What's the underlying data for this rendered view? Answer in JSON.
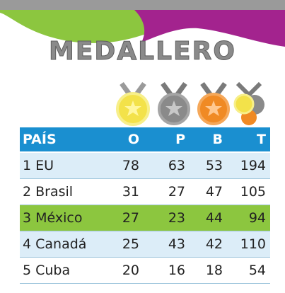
{
  "title": "MEDALLERO",
  "table": {
    "header": [
      "PAÍS",
      "O",
      "P",
      "B",
      "T"
    ],
    "rows": [
      [
        "1 EU",
        "78",
        "63",
        "53",
        "194"
      ],
      [
        "2 Brasil",
        "31",
        "27",
        "47",
        "105"
      ],
      [
        "3 México",
        "27",
        "23",
        "44",
        "94"
      ],
      [
        "4 Canadá",
        "25",
        "43",
        "42",
        "110"
      ],
      [
        "5 Cuba",
        "20",
        "16",
        "18",
        "54"
      ]
    ]
  }
}
